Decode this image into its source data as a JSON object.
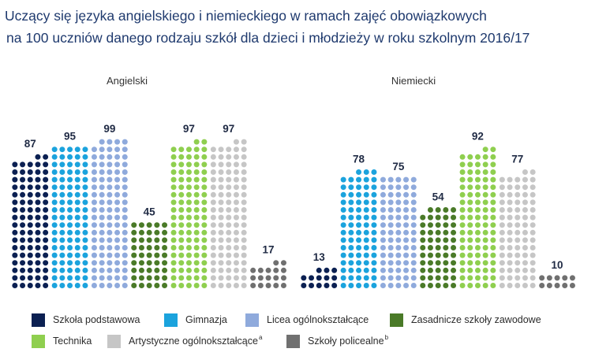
{
  "title": {
    "line1": "Uczący się języka angielskiego i niemieckiego w ramach zajęć obowiązkowych",
    "line2": "na 100 uczniów danego rodzaju szkół dla dzieci i młodzieży w roku szkolnym 2016/17"
  },
  "chart_data": {
    "type": "bar",
    "style": "dot-pictogram (100 dots = 100 pupils, 5 dots per row)",
    "title": "Uczący się języka angielskiego i niemieckiego w ramach zajęć obowiązkowych na 100 uczniów danego rodzaju szkół dla dzieci i młodzieży w roku szkolnym 2016/17",
    "groups": [
      "Angielski",
      "Niemiecki"
    ],
    "ylim": [
      0,
      100
    ],
    "series": [
      {
        "name": "Szkoła podstawowa",
        "color": "#0b2052",
        "values": [
          87,
          13
        ]
      },
      {
        "name": "Gimnazja",
        "color": "#1ba3dd",
        "values": [
          95,
          78
        ]
      },
      {
        "name": "Licea ogólnokształcące",
        "color": "#8faadc",
        "values": [
          99,
          75
        ]
      },
      {
        "name": "Zasadnicze szkoły zawodowe",
        "color": "#4a7a28",
        "values": [
          45,
          54
        ]
      },
      {
        "name": "Technika",
        "color": "#8fcf4f",
        "values": [
          97,
          92
        ]
      },
      {
        "name": "Artystyczne ogólnokształcące",
        "sup": "a",
        "color": "#c6c6c6",
        "values": [
          97,
          77
        ]
      },
      {
        "name": "Szkoły policealne",
        "sup": "b",
        "color": "#707070",
        "values": [
          17,
          10
        ]
      }
    ]
  }
}
